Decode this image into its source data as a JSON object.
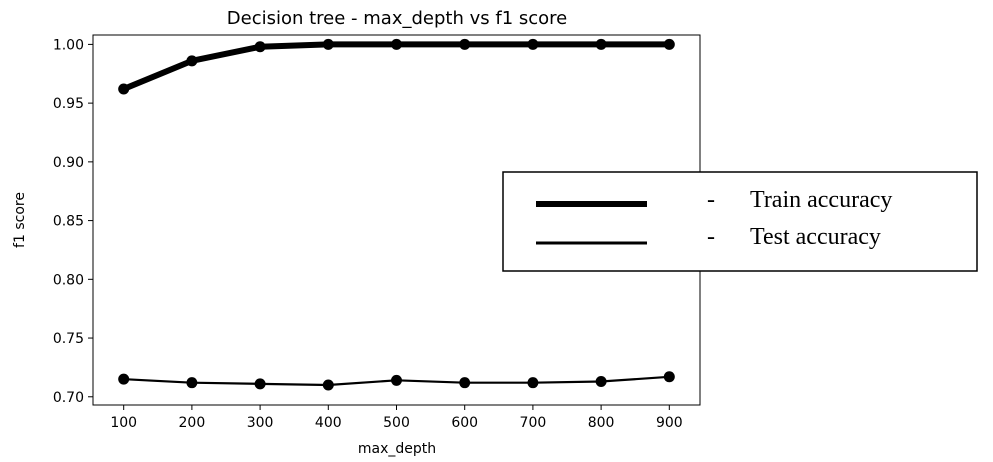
{
  "chart_data": {
    "type": "line",
    "title": "Decision tree - max_depth vs f1 score",
    "xlabel": "max_depth",
    "ylabel": "f1 score",
    "x": [
      100,
      200,
      300,
      400,
      500,
      600,
      700,
      800,
      900
    ],
    "xlim": [
      55,
      945
    ],
    "ylim": [
      0.693,
      1.008
    ],
    "xticks": [
      "100",
      "200",
      "300",
      "400",
      "500",
      "600",
      "700",
      "800",
      "900"
    ],
    "yticks": [
      "0.70",
      "0.75",
      "0.80",
      "0.85",
      "0.90",
      "0.95",
      "1.00"
    ],
    "grid": false,
    "legend_position": "right",
    "series": [
      {
        "name": "Train accuracy",
        "values": [
          0.962,
          0.986,
          0.998,
          1.0,
          1.0,
          1.0,
          1.0,
          1.0,
          1.0
        ],
        "color": "#000000",
        "style": "thick"
      },
      {
        "name": "Test accuracy",
        "values": [
          0.715,
          0.712,
          0.711,
          0.71,
          0.714,
          0.712,
          0.712,
          0.713,
          0.717
        ],
        "color": "#000000",
        "style": "thin"
      }
    ],
    "legend_separator": "-"
  }
}
